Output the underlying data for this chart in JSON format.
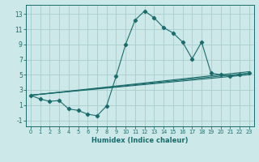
{
  "xlabel": "Humidex (Indice chaleur)",
  "bg_color": "#cce8e8",
  "grid_color": "#aacccc",
  "line_color": "#1a6b6b",
  "xlim": [
    -0.5,
    23.5
  ],
  "ylim": [
    -1.8,
    14.2
  ],
  "xticks": [
    0,
    1,
    2,
    3,
    4,
    5,
    6,
    7,
    8,
    9,
    10,
    11,
    12,
    13,
    14,
    15,
    16,
    17,
    18,
    19,
    20,
    21,
    22,
    23
  ],
  "yticks": [
    -1,
    1,
    3,
    5,
    7,
    9,
    11,
    13
  ],
  "main_series": [
    [
      0,
      2.3
    ],
    [
      1,
      1.8
    ],
    [
      2,
      1.5
    ],
    [
      3,
      1.6
    ],
    [
      4,
      0.5
    ],
    [
      5,
      0.3
    ],
    [
      6,
      -0.2
    ],
    [
      7,
      -0.4
    ],
    [
      8,
      0.9
    ],
    [
      9,
      4.8
    ],
    [
      10,
      9.0
    ],
    [
      11,
      12.2
    ],
    [
      12,
      13.4
    ],
    [
      13,
      12.5
    ],
    [
      14,
      11.2
    ],
    [
      15,
      10.5
    ],
    [
      16,
      9.3
    ],
    [
      17,
      7.1
    ],
    [
      18,
      9.3
    ],
    [
      19,
      5.2
    ],
    [
      20,
      5.0
    ],
    [
      21,
      4.8
    ],
    [
      22,
      5.0
    ],
    [
      23,
      5.2
    ]
  ],
  "fan_lines": [
    [
      [
        0,
        2.3
      ],
      [
        23,
        5.0
      ]
    ],
    [
      [
        0,
        2.3
      ],
      [
        23,
        5.2
      ]
    ],
    [
      [
        0,
        2.3
      ],
      [
        23,
        5.4
      ]
    ]
  ]
}
